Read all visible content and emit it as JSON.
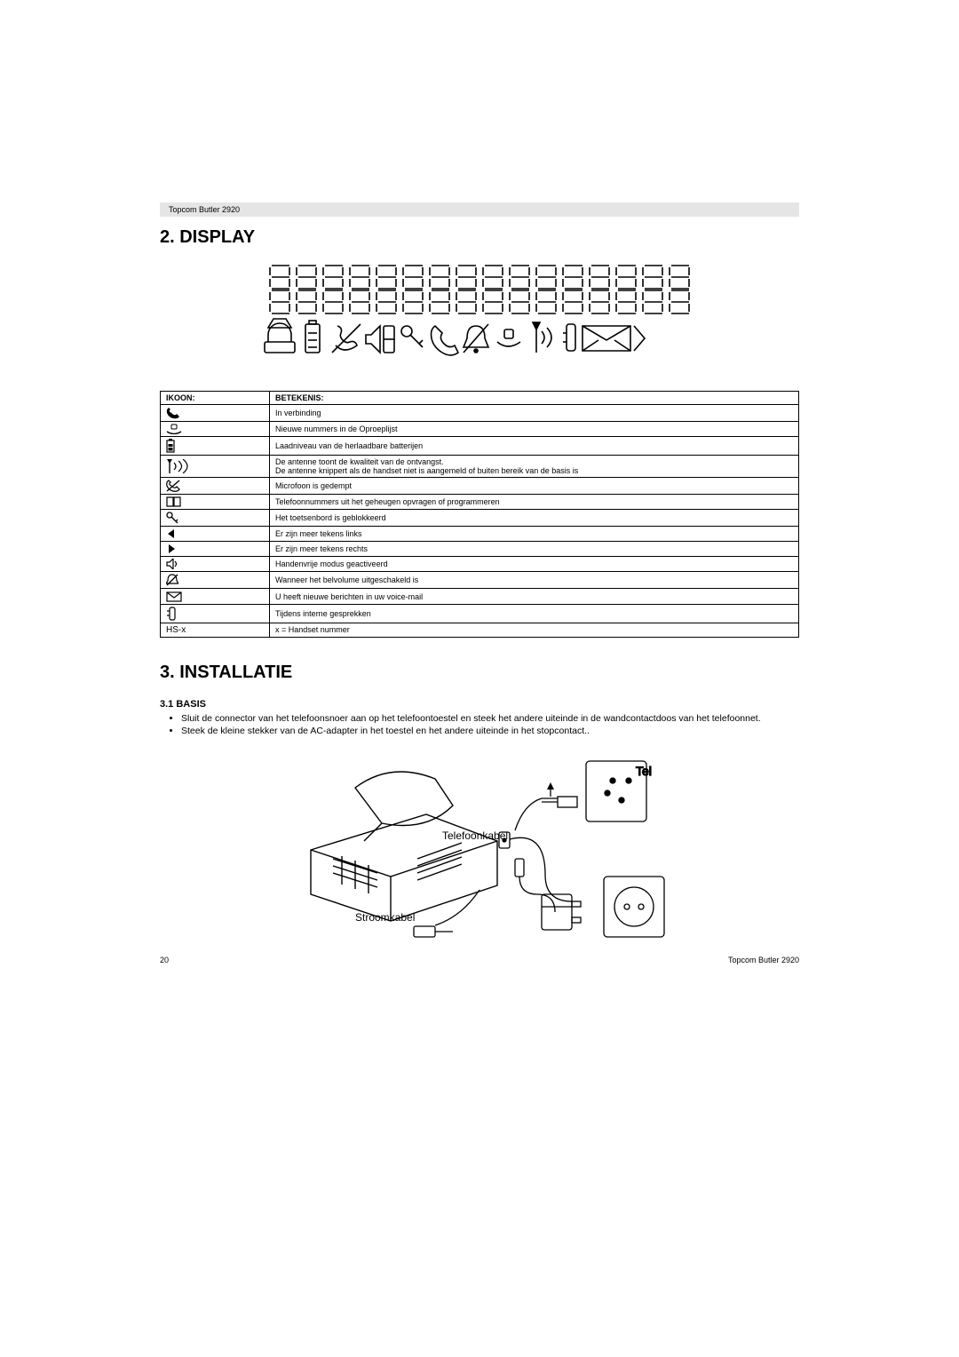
{
  "header": {
    "product": "Topcom Butler 2920"
  },
  "sections": {
    "display": {
      "title": "2. DISPLAY"
    },
    "install": {
      "title": "3. INSTALLATIE",
      "basis_title": "3.1 BASIS",
      "bullet1": "Sluit de connector van het telefoonsnoer aan op het telefoontoestel en steek het andere uiteinde in de wandcontactdoos van het telefoonnet.",
      "bullet2": "Steek de kleine stekker van de AC-adapter in het toestel en het andere uiteinde in het stopcontact..",
      "label_tel": "Tel",
      "label_phone_cable": "Telefoonkabel",
      "label_power_cable": "Stroomkabel"
    }
  },
  "table": {
    "head_icon": "IKOON:",
    "head_meaning": "BETEKENIS:",
    "rows": [
      {
        "icon": "phone-handset-icon",
        "text": "In verbinding"
      },
      {
        "icon": "call-list-icon",
        "text": "Nieuwe nummers in de Oproeplijst"
      },
      {
        "icon": "battery-icon",
        "text": "Laadniveau van de herlaadbare batterijen"
      },
      {
        "icon": "antenna-signal-icon",
        "text": "De antenne toont de kwaliteit van de ontvangst.\nDe antenne knippert als de handset niet is aangemeld of buiten bereik van de basis is"
      },
      {
        "icon": "mic-mute-icon",
        "text": "Microfoon is gedempt"
      },
      {
        "icon": "phonebook-icon",
        "text": "Telefoonnummers uit het geheugen opvragen of programmeren"
      },
      {
        "icon": "key-lock-icon",
        "text": "Het toetsenbord is geblokkeerd"
      },
      {
        "icon": "arrow-left-icon",
        "text": "Er zijn meer tekens links"
      },
      {
        "icon": "arrow-right-icon",
        "text": "Er zijn meer tekens rechts"
      },
      {
        "icon": "speaker-icon",
        "text": "Handenvrije modus geactiveerd"
      },
      {
        "icon": "ringer-off-icon",
        "text": "Wanneer het belvolume uitgeschakeld is"
      },
      {
        "icon": "envelope-icon",
        "text": "U heeft nieuwe berichten in uw voice-mail"
      },
      {
        "icon": "intercom-icon",
        "text": "Tijdens interne gesprekken"
      },
      {
        "icon": "hs-x-label",
        "text": "x = Handset nummer"
      }
    ],
    "hs_x": "HS-x"
  },
  "footer": {
    "page_num": "20",
    "product": "Topcom Butler 2920"
  }
}
